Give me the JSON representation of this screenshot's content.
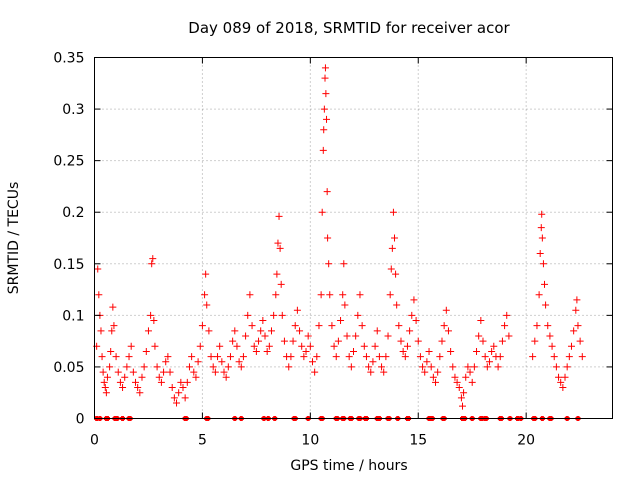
{
  "chart_data": {
    "type": "scatter",
    "title": "Day 089 of 2018, SRMTID for receiver acor",
    "xlabel": "GPS time / hours",
    "ylabel": "SRMTID / TECUs",
    "xlim": [
      0,
      24
    ],
    "ylim": [
      0,
      0.35
    ],
    "xticks": [
      0,
      5,
      10,
      15,
      20
    ],
    "xtick_labels": [
      "0",
      "5",
      "10",
      "15",
      "20"
    ],
    "yticks": [
      0,
      0.05,
      0.1,
      0.15,
      0.2,
      0.25,
      0.3,
      0.35
    ],
    "ytick_labels": [
      "0",
      "0.05",
      "0.1",
      "0.15",
      "0.2",
      "0.25",
      "0.3",
      "0.35"
    ],
    "grid": true,
    "marker": "+",
    "color": "#ff0000",
    "series": [
      {
        "name": "SRMTID",
        "points": [
          [
            0.1,
            0.07
          ],
          [
            0.15,
            0.145
          ],
          [
            0.2,
            0.12
          ],
          [
            0.25,
            0.1
          ],
          [
            0.3,
            0.085
          ],
          [
            0.35,
            0.06
          ],
          [
            0.4,
            0.045
          ],
          [
            0.45,
            0.035
          ],
          [
            0.5,
            0.03
          ],
          [
            0.55,
            0.025
          ],
          [
            0.6,
            0.04
          ],
          [
            0.7,
            0.05
          ],
          [
            0.75,
            0.065
          ],
          [
            0.8,
            0.085
          ],
          [
            0.85,
            0.108
          ],
          [
            0.9,
            0.09
          ],
          [
            1.0,
            0.06
          ],
          [
            1.1,
            0.045
          ],
          [
            1.2,
            0.035
          ],
          [
            1.3,
            0.03
          ],
          [
            1.4,
            0.04
          ],
          [
            1.5,
            0.05
          ],
          [
            1.6,
            0.06
          ],
          [
            1.7,
            0.07
          ],
          [
            1.8,
            0.045
          ],
          [
            1.9,
            0.035
          ],
          [
            2.0,
            0.03
          ],
          [
            2.1,
            0.025
          ],
          [
            2.2,
            0.04
          ],
          [
            2.3,
            0.05
          ],
          [
            2.4,
            0.065
          ],
          [
            2.5,
            0.085
          ],
          [
            2.6,
            0.1
          ],
          [
            2.65,
            0.15
          ],
          [
            2.7,
            0.155
          ],
          [
            2.75,
            0.095
          ],
          [
            2.8,
            0.07
          ],
          [
            2.9,
            0.05
          ],
          [
            3.0,
            0.04
          ],
          [
            3.1,
            0.035
          ],
          [
            3.2,
            0.045
          ],
          [
            3.3,
            0.055
          ],
          [
            3.4,
            0.06
          ],
          [
            3.5,
            0.045
          ],
          [
            3.6,
            0.03
          ],
          [
            3.7,
            0.02
          ],
          [
            3.8,
            0.015
          ],
          [
            3.9,
            0.025
          ],
          [
            4.0,
            0.035
          ],
          [
            4.1,
            0.03
          ],
          [
            4.2,
            0.02
          ],
          [
            4.3,
            0.035
          ],
          [
            4.4,
            0.05
          ],
          [
            4.5,
            0.06
          ],
          [
            4.6,
            0.045
          ],
          [
            4.7,
            0.04
          ],
          [
            4.8,
            0.055
          ],
          [
            4.9,
            0.07
          ],
          [
            5.0,
            0.09
          ],
          [
            5.1,
            0.12
          ],
          [
            5.15,
            0.14
          ],
          [
            5.2,
            0.11
          ],
          [
            5.3,
            0.085
          ],
          [
            5.4,
            0.06
          ],
          [
            5.5,
            0.05
          ],
          [
            5.6,
            0.045
          ],
          [
            5.7,
            0.06
          ],
          [
            5.8,
            0.07
          ],
          [
            5.9,
            0.055
          ],
          [
            6.0,
            0.045
          ],
          [
            6.1,
            0.04
          ],
          [
            6.2,
            0.05
          ],
          [
            6.3,
            0.06
          ],
          [
            6.4,
            0.075
          ],
          [
            6.5,
            0.085
          ],
          [
            6.6,
            0.07
          ],
          [
            6.7,
            0.055
          ],
          [
            6.8,
            0.05
          ],
          [
            6.9,
            0.06
          ],
          [
            7.0,
            0.08
          ],
          [
            7.1,
            0.1
          ],
          [
            7.2,
            0.12
          ],
          [
            7.3,
            0.09
          ],
          [
            7.4,
            0.07
          ],
          [
            7.5,
            0.065
          ],
          [
            7.6,
            0.075
          ],
          [
            7.7,
            0.085
          ],
          [
            7.8,
            0.095
          ],
          [
            7.9,
            0.08
          ],
          [
            8.0,
            0.065
          ],
          [
            8.1,
            0.07
          ],
          [
            8.2,
            0.085
          ],
          [
            8.3,
            0.1
          ],
          [
            8.4,
            0.12
          ],
          [
            8.45,
            0.14
          ],
          [
            8.5,
            0.17
          ],
          [
            8.55,
            0.196
          ],
          [
            8.6,
            0.165
          ],
          [
            8.65,
            0.13
          ],
          [
            8.7,
            0.1
          ],
          [
            8.8,
            0.075
          ],
          [
            8.9,
            0.06
          ],
          [
            9.0,
            0.05
          ],
          [
            9.1,
            0.06
          ],
          [
            9.2,
            0.075
          ],
          [
            9.3,
            0.09
          ],
          [
            9.4,
            0.105
          ],
          [
            9.5,
            0.085
          ],
          [
            9.6,
            0.07
          ],
          [
            9.7,
            0.06
          ],
          [
            9.8,
            0.065
          ],
          [
            9.9,
            0.08
          ],
          [
            10.0,
            0.07
          ],
          [
            10.1,
            0.055
          ],
          [
            10.2,
            0.045
          ],
          [
            10.3,
            0.06
          ],
          [
            10.4,
            0.09
          ],
          [
            10.5,
            0.12
          ],
          [
            10.55,
            0.2
          ],
          [
            10.6,
            0.26
          ],
          [
            10.62,
            0.28
          ],
          [
            10.65,
            0.3
          ],
          [
            10.68,
            0.33
          ],
          [
            10.7,
            0.34
          ],
          [
            10.72,
            0.315
          ],
          [
            10.75,
            0.29
          ],
          [
            10.78,
            0.22
          ],
          [
            10.8,
            0.175
          ],
          [
            10.85,
            0.15
          ],
          [
            10.9,
            0.12
          ],
          [
            11.0,
            0.09
          ],
          [
            11.1,
            0.07
          ],
          [
            11.2,
            0.06
          ],
          [
            11.3,
            0.075
          ],
          [
            11.4,
            0.095
          ],
          [
            11.5,
            0.12
          ],
          [
            11.55,
            0.15
          ],
          [
            11.6,
            0.11
          ],
          [
            11.7,
            0.08
          ],
          [
            11.8,
            0.06
          ],
          [
            11.9,
            0.05
          ],
          [
            12.0,
            0.065
          ],
          [
            12.1,
            0.08
          ],
          [
            12.2,
            0.1
          ],
          [
            12.3,
            0.12
          ],
          [
            12.4,
            0.09
          ],
          [
            12.5,
            0.07
          ],
          [
            12.6,
            0.06
          ],
          [
            12.7,
            0.05
          ],
          [
            12.8,
            0.045
          ],
          [
            12.9,
            0.055
          ],
          [
            13.0,
            0.07
          ],
          [
            13.1,
            0.085
          ],
          [
            13.2,
            0.06
          ],
          [
            13.3,
            0.05
          ],
          [
            13.4,
            0.045
          ],
          [
            13.5,
            0.06
          ],
          [
            13.6,
            0.08
          ],
          [
            13.7,
            0.12
          ],
          [
            13.75,
            0.145
          ],
          [
            13.8,
            0.165
          ],
          [
            13.85,
            0.2
          ],
          [
            13.9,
            0.175
          ],
          [
            13.95,
            0.14
          ],
          [
            14.0,
            0.11
          ],
          [
            14.1,
            0.09
          ],
          [
            14.2,
            0.075
          ],
          [
            14.3,
            0.065
          ],
          [
            14.4,
            0.06
          ],
          [
            14.5,
            0.07
          ],
          [
            14.6,
            0.085
          ],
          [
            14.7,
            0.1
          ],
          [
            14.8,
            0.115
          ],
          [
            14.9,
            0.095
          ],
          [
            15.0,
            0.075
          ],
          [
            15.1,
            0.06
          ],
          [
            15.2,
            0.05
          ],
          [
            15.3,
            0.045
          ],
          [
            15.4,
            0.055
          ],
          [
            15.5,
            0.065
          ],
          [
            15.6,
            0.05
          ],
          [
            15.7,
            0.04
          ],
          [
            15.8,
            0.035
          ],
          [
            15.9,
            0.045
          ],
          [
            16.0,
            0.06
          ],
          [
            16.1,
            0.075
          ],
          [
            16.2,
            0.09
          ],
          [
            16.3,
            0.105
          ],
          [
            16.4,
            0.085
          ],
          [
            16.5,
            0.065
          ],
          [
            16.6,
            0.05
          ],
          [
            16.7,
            0.04
          ],
          [
            16.8,
            0.035
          ],
          [
            16.9,
            0.03
          ],
          [
            17.0,
            0.02
          ],
          [
            17.05,
            0.012
          ],
          [
            17.1,
            0.025
          ],
          [
            17.2,
            0.04
          ],
          [
            17.3,
            0.05
          ],
          [
            17.4,
            0.045
          ],
          [
            17.5,
            0.035
          ],
          [
            17.6,
            0.05
          ],
          [
            17.7,
            0.065
          ],
          [
            17.8,
            0.08
          ],
          [
            17.9,
            0.095
          ],
          [
            18.0,
            0.075
          ],
          [
            18.1,
            0.06
          ],
          [
            18.2,
            0.05
          ],
          [
            18.3,
            0.055
          ],
          [
            18.4,
            0.065
          ],
          [
            18.5,
            0.07
          ],
          [
            18.6,
            0.06
          ],
          [
            18.7,
            0.05
          ],
          [
            18.8,
            0.06
          ],
          [
            18.9,
            0.075
          ],
          [
            19.0,
            0.09
          ],
          [
            19.1,
            0.1
          ],
          [
            19.2,
            0.08
          ],
          [
            20.3,
            0.06
          ],
          [
            20.4,
            0.075
          ],
          [
            20.5,
            0.09
          ],
          [
            20.6,
            0.12
          ],
          [
            20.65,
            0.16
          ],
          [
            20.7,
            0.185
          ],
          [
            20.72,
            0.198
          ],
          [
            20.75,
            0.175
          ],
          [
            20.8,
            0.15
          ],
          [
            20.85,
            0.13
          ],
          [
            20.9,
            0.11
          ],
          [
            21.0,
            0.09
          ],
          [
            21.1,
            0.08
          ],
          [
            21.2,
            0.07
          ],
          [
            21.3,
            0.06
          ],
          [
            21.4,
            0.05
          ],
          [
            21.5,
            0.04
          ],
          [
            21.6,
            0.035
          ],
          [
            21.7,
            0.03
          ],
          [
            21.8,
            0.04
          ],
          [
            21.9,
            0.05
          ],
          [
            22.0,
            0.06
          ],
          [
            22.1,
            0.07
          ],
          [
            22.2,
            0.085
          ],
          [
            22.3,
            0.105
          ],
          [
            22.35,
            0.115
          ],
          [
            22.4,
            0.09
          ],
          [
            22.5,
            0.075
          ],
          [
            22.6,
            0.06
          ]
        ],
        "zero_points": [
          0.1,
          0.25,
          0.55,
          0.6,
          0.95,
          1.05,
          1.3,
          1.6,
          1.65,
          4.2,
          4.25,
          5.2,
          5.25,
          6.5,
          6.8,
          7.85,
          8.05,
          8.35,
          9.25,
          9.3,
          9.9,
          10.5,
          10.55,
          11.2,
          11.25,
          11.5,
          11.55,
          11.85,
          11.9,
          12.25,
          12.3,
          12.55,
          12.6,
          13.1,
          13.2,
          13.6,
          13.65,
          14.05,
          14.5,
          14.55,
          15.5,
          15.55,
          15.6,
          15.65,
          16.15,
          16.2,
          17.05,
          17.1,
          17.15,
          17.5,
          17.9,
          17.95,
          18.1,
          18.15,
          18.8,
          18.85,
          19.25,
          19.6,
          19.75,
          20.35,
          20.4,
          20.75,
          21.1,
          21.15,
          21.9,
          22.4
        ]
      }
    ]
  }
}
